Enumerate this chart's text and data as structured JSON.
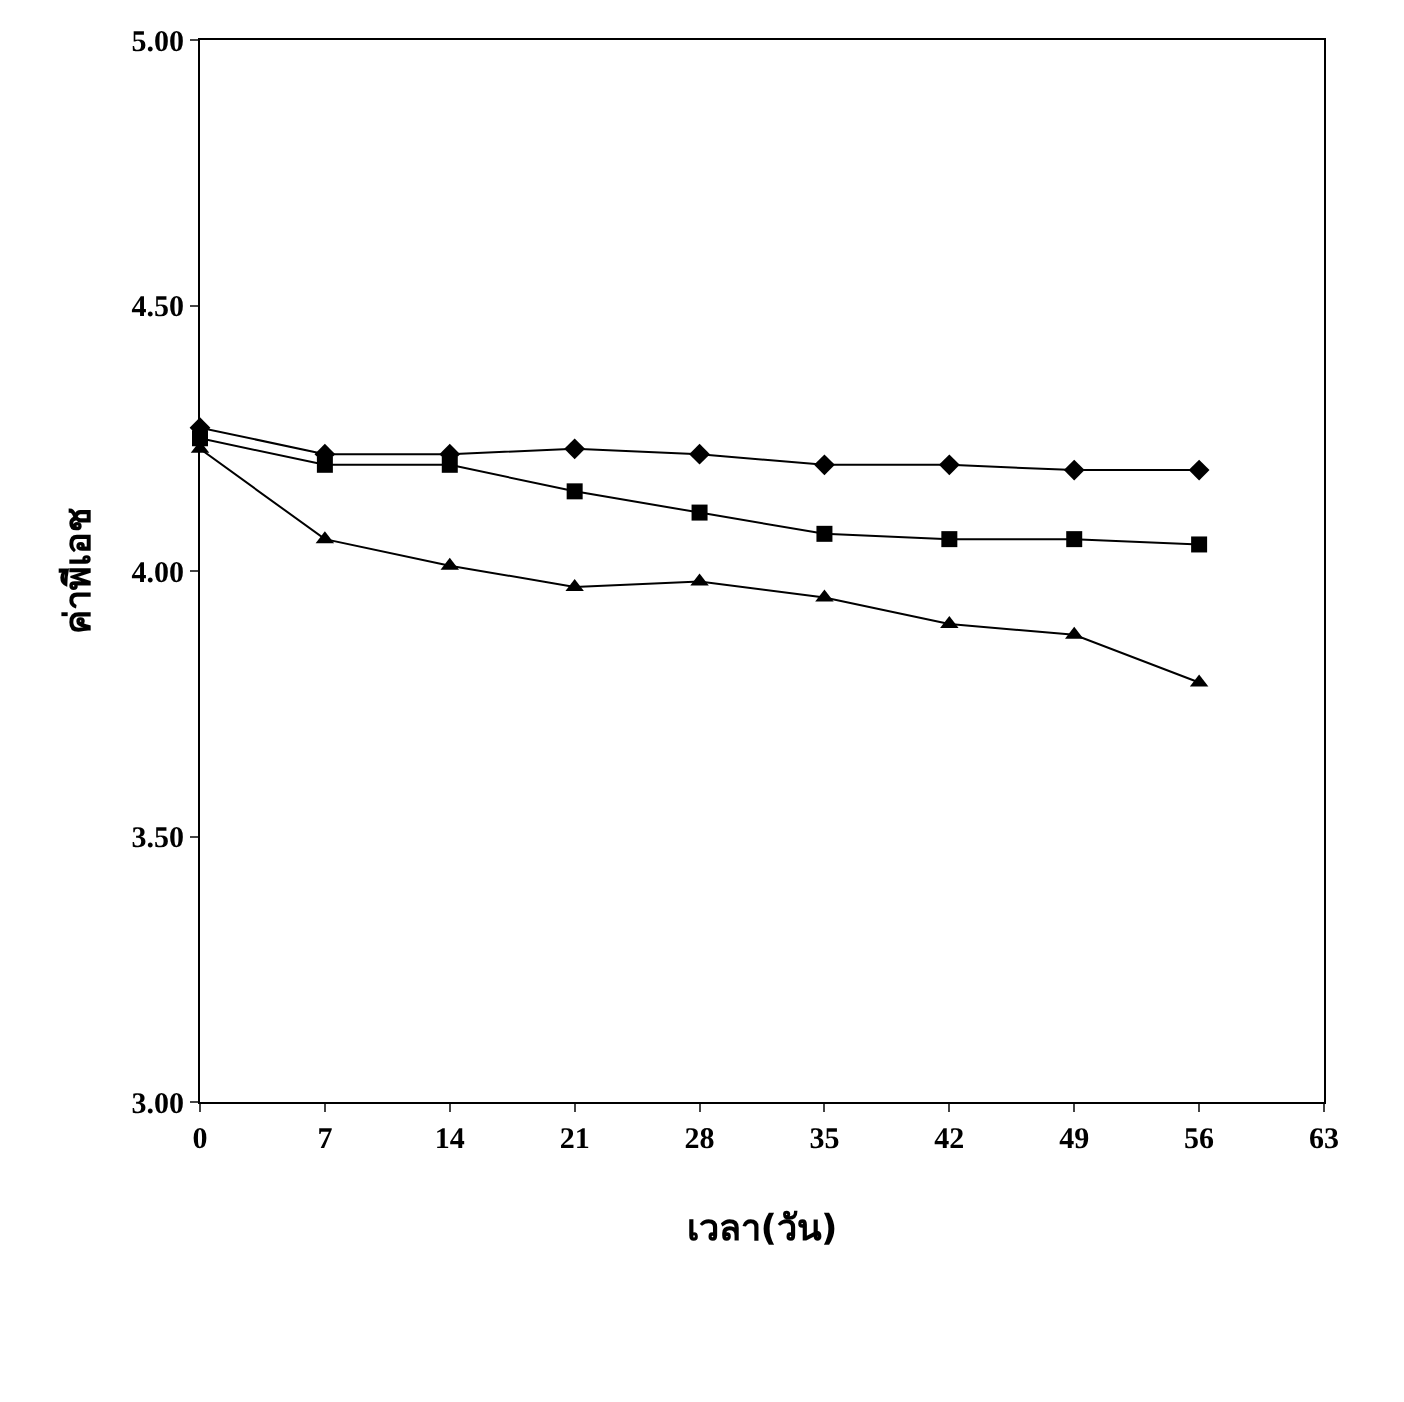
{
  "chart_data": {
    "type": "line",
    "xlabel": "เวลา(วัน)",
    "ylabel": "ค่าพีเอช",
    "x": [
      0,
      7,
      14,
      21,
      28,
      35,
      42,
      49,
      56
    ],
    "xlim": [
      0,
      63
    ],
    "xticks": [
      0,
      7,
      14,
      21,
      28,
      35,
      42,
      49,
      56,
      63
    ],
    "ylim": [
      3,
      5
    ],
    "yticks": [
      {
        "value": 3,
        "label": "3.00"
      },
      {
        "value": 3.5,
        "label": "3.50"
      },
      {
        "value": 4,
        "label": "4.00"
      },
      {
        "value": 4.5,
        "label": "4.50"
      },
      {
        "value": 5,
        "label": "5.00"
      }
    ],
    "line_style": "solid",
    "series": [
      {
        "color": "#000000",
        "marker": "triangle",
        "values": [
          4.23,
          4.06,
          4.01,
          3.97,
          3.98,
          3.95,
          3.9,
          3.88,
          3.79
        ]
      },
      {
        "color": "#000000",
        "marker": "diamond",
        "values": [
          4.27,
          4.22,
          4.22,
          4.23,
          4.22,
          4.2,
          4.2,
          4.19,
          4.19
        ]
      },
      {
        "color": "#000000",
        "marker": "square",
        "values": [
          4.25,
          4.2,
          4.2,
          4.15,
          4.11,
          4.07,
          4.06,
          4.06,
          4.05
        ]
      }
    ]
  }
}
